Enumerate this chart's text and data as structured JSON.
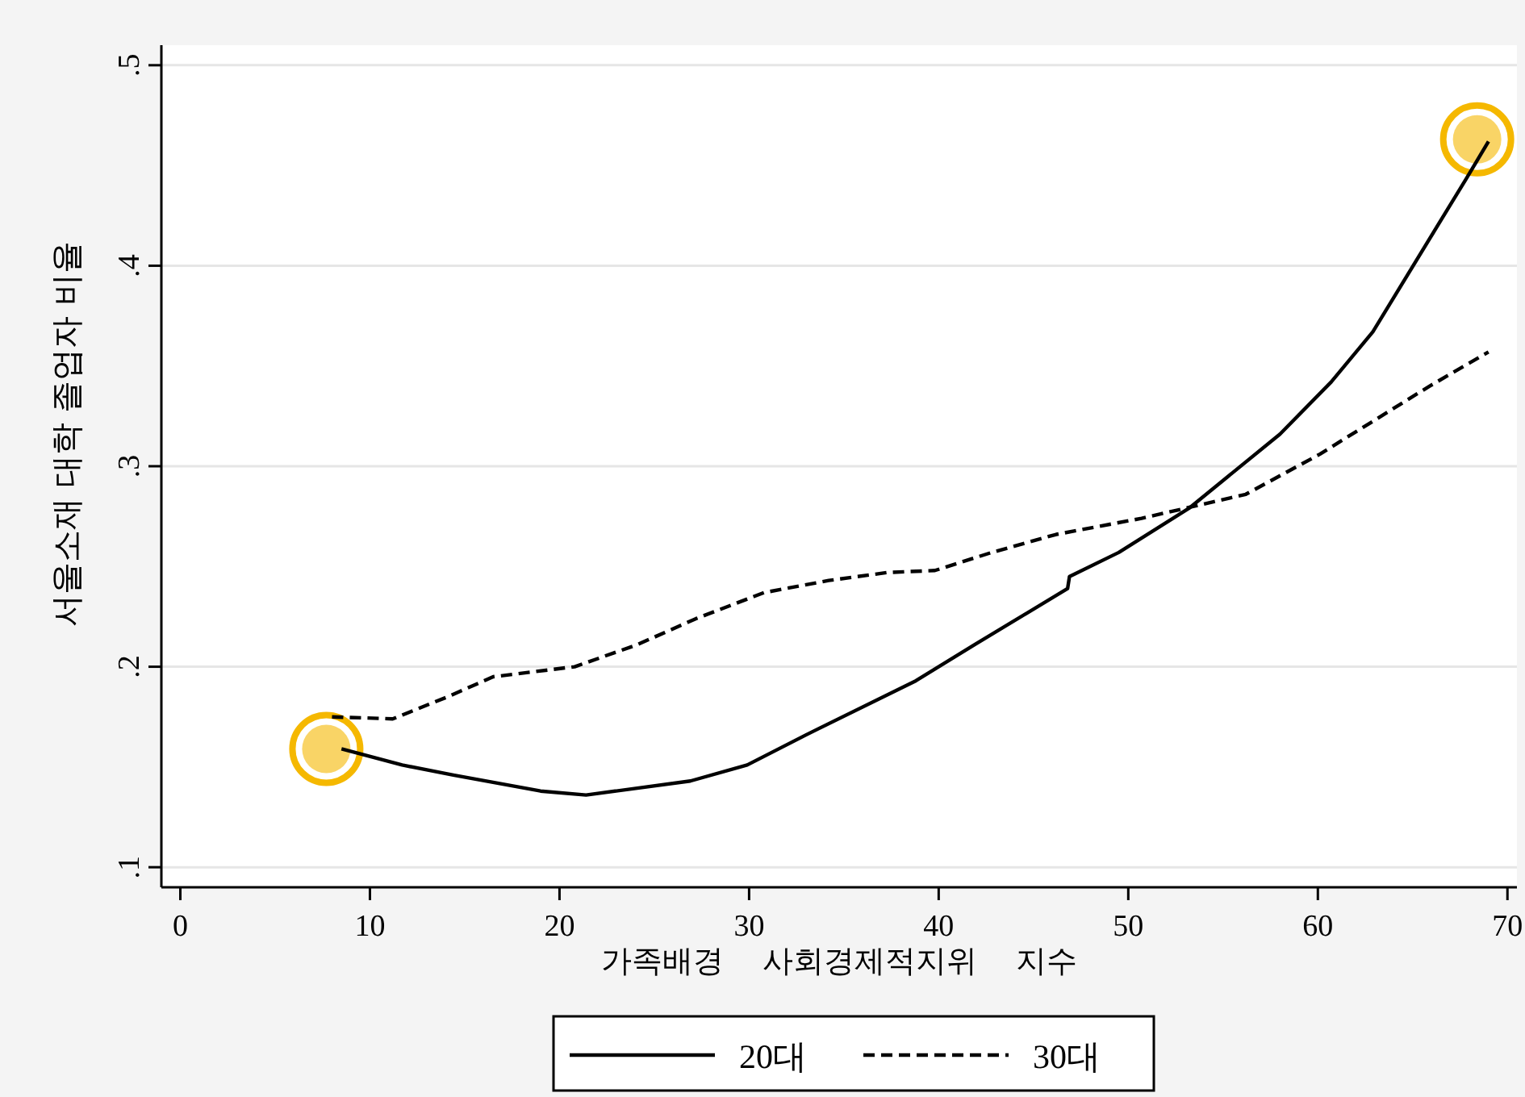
{
  "chart_data": {
    "type": "line",
    "xlabel": "가족배경 사회경제적지위 지수",
    "ylabel": "서울소재 대학 졸업자 비율",
    "xlim": [
      -1,
      70.5
    ],
    "ylim": [
      0.09,
      0.51
    ],
    "xticks": [
      0,
      10,
      20,
      30,
      40,
      50,
      60,
      70
    ],
    "yticks": [
      {
        "value": 0.1,
        "label": ".1"
      },
      {
        "value": 0.2,
        "label": ".2"
      },
      {
        "value": 0.3,
        "label": ".3"
      },
      {
        "value": 0.4,
        "label": ".4"
      },
      {
        "value": 0.5,
        "label": ".5"
      }
    ],
    "grid": "y",
    "legend": "bottom",
    "series": [
      {
        "name": "20대",
        "color": "#000000",
        "line_style": "solid",
        "x": [
          8.5,
          11.7,
          14.4,
          19,
          21.4,
          26.9,
          29.9,
          33,
          38.8,
          41.9,
          46.8,
          46.9,
          49.5,
          53.2,
          58,
          60.7,
          62.9,
          67.8,
          69
        ],
        "values": [
          0.159,
          0.151,
          0.146,
          0.138,
          0.136,
          0.143,
          0.151,
          0.166,
          0.193,
          0.211,
          0.239,
          0.245,
          0.257,
          0.279,
          0.316,
          0.342,
          0.367,
          0.443,
          0.462
        ]
      },
      {
        "name": "30대",
        "color": "#000000",
        "line_style": "dashed",
        "x": [
          8,
          11.2,
          14.1,
          16.5,
          20.8,
          24.1,
          27.2,
          30.8,
          34.2,
          37.3,
          39.8,
          42.8,
          46.2,
          50.7,
          56.2,
          60.1,
          65.9,
          69
        ],
        "values": [
          0.175,
          0.174,
          0.185,
          0.195,
          0.2,
          0.211,
          0.224,
          0.237,
          0.243,
          0.247,
          0.248,
          0.257,
          0.266,
          0.274,
          0.286,
          0.306,
          0.34,
          0.357
        ]
      },
      {
        "type": "scatter",
        "color": "#f5b800",
        "marker": "circle",
        "x": [
          7.7,
          68.4
        ],
        "values": [
          0.159,
          0.463
        ]
      }
    ]
  }
}
